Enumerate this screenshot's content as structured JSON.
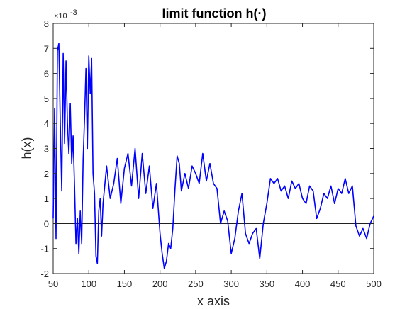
{
  "chart_data": {
    "type": "line",
    "title": "limit function h(·)",
    "xlabel": "x axis",
    "ylabel": "h(x)",
    "y_exponent_label": "×10",
    "y_exponent_power": "-3",
    "xlim": [
      50,
      500
    ],
    "ylim": [
      -2,
      8
    ],
    "x_ticks": [
      50,
      100,
      150,
      200,
      250,
      300,
      350,
      400,
      450,
      500
    ],
    "y_ticks": [
      -2,
      -1,
      0,
      1,
      2,
      3,
      4,
      5,
      6,
      7,
      8
    ],
    "grid": false,
    "legend": "none",
    "reference_line_y": 0,
    "colors": {
      "series": "#0000ff",
      "reference_line": "#000000",
      "axes": "#262626"
    },
    "series": [
      {
        "x": [
          50,
          52,
          54,
          56,
          58,
          60,
          62,
          64,
          66,
          68,
          70,
          72,
          74,
          76,
          78,
          80,
          82,
          84,
          86,
          88,
          90,
          92,
          94,
          96,
          98,
          100,
          102,
          104,
          106,
          108,
          110,
          112,
          114,
          116,
          118,
          120,
          125,
          130,
          135,
          140,
          145,
          150,
          155,
          160,
          165,
          170,
          175,
          180,
          185,
          190,
          195,
          200,
          203,
          206,
          209,
          212,
          215,
          218,
          221,
          224,
          227,
          230,
          235,
          240,
          245,
          250,
          255,
          260,
          265,
          270,
          275,
          280,
          285,
          290,
          295,
          300,
          305,
          310,
          315,
          320,
          325,
          330,
          335,
          340,
          345,
          350,
          355,
          360,
          365,
          370,
          375,
          380,
          385,
          390,
          395,
          400,
          405,
          410,
          415,
          420,
          425,
          430,
          435,
          440,
          445,
          450,
          455,
          460,
          465,
          470,
          475,
          480,
          485,
          490,
          495,
          500
        ],
        "y": [
          0.2,
          4.6,
          -0.6,
          6.9,
          7.2,
          4.0,
          1.3,
          6.8,
          3.2,
          6.5,
          4.0,
          2.8,
          4.8,
          2.4,
          3.5,
          1.5,
          -0.8,
          0.2,
          -1.2,
          0.5,
          -0.8,
          2.5,
          4.2,
          6.2,
          3.0,
          6.7,
          5.2,
          6.6,
          2.0,
          1.2,
          -1.3,
          -1.6,
          0.5,
          1.0,
          -0.5,
          0.8,
          2.3,
          1.0,
          1.6,
          2.6,
          0.8,
          2.2,
          2.8,
          1.5,
          3.0,
          1.0,
          2.8,
          1.2,
          2.3,
          0.6,
          1.6,
          -0.4,
          -1.2,
          -1.8,
          -1.5,
          -0.8,
          -1.0,
          -0.2,
          1.4,
          2.7,
          2.4,
          1.3,
          2.0,
          1.4,
          2.3,
          2.0,
          1.6,
          2.8,
          1.7,
          2.4,
          1.6,
          1.4,
          0.0,
          0.5,
          0.1,
          -1.2,
          -0.6,
          0.5,
          1.2,
          -0.4,
          -0.8,
          -0.4,
          -0.2,
          -1.4,
          0.0,
          0.8,
          1.8,
          1.6,
          1.8,
          1.3,
          1.5,
          1.0,
          1.7,
          1.4,
          1.6,
          1.0,
          0.8,
          1.5,
          1.3,
          0.2,
          0.6,
          1.2,
          1.0,
          1.5,
          0.8,
          1.4,
          1.2,
          1.8,
          1.2,
          1.5,
          -0.1,
          -0.5,
          -0.2,
          -0.6,
          0.0,
          0.3
        ]
      }
    ]
  }
}
